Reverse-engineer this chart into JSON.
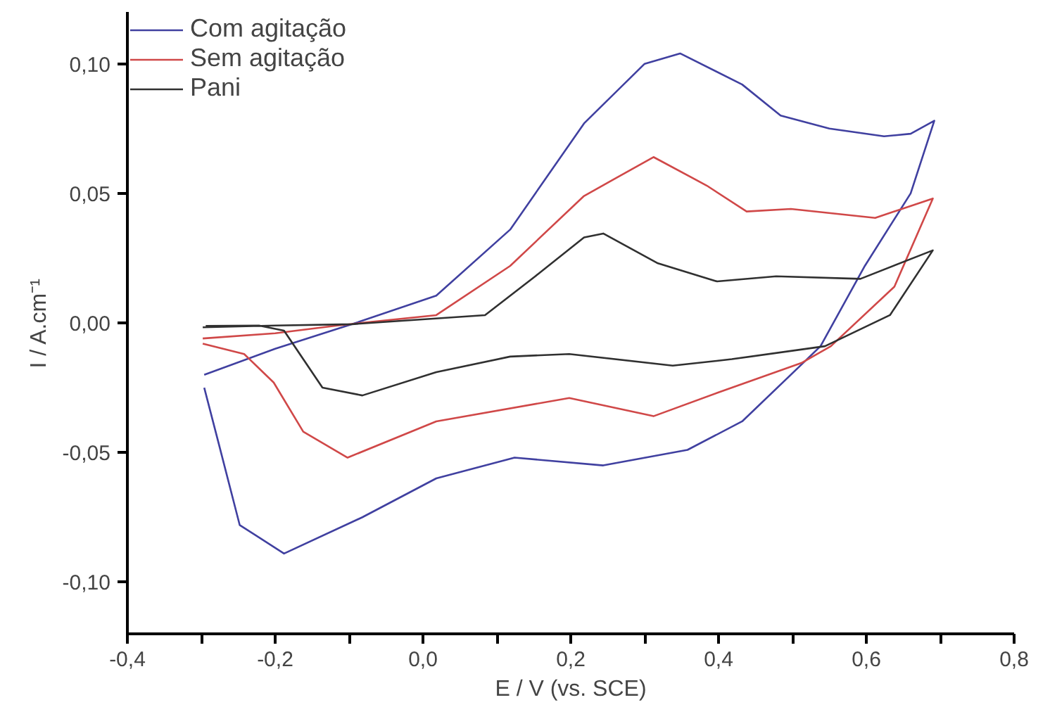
{
  "chart_data": {
    "type": "line",
    "xlabel": "E / V (vs. SCE)",
    "ylabel": "I / A.cm⁻¹",
    "xlim": [
      -0.4,
      0.8
    ],
    "ylim": [
      -0.12,
      0.12
    ],
    "xticks": [
      {
        "value": -0.4,
        "label": "-0,4"
      },
      {
        "value": -0.3,
        "label": null
      },
      {
        "value": -0.2,
        "label": "-0,2"
      },
      {
        "value": -0.1,
        "label": null
      },
      {
        "value": 0.0,
        "label": "0,0"
      },
      {
        "value": 0.1,
        "label": null
      },
      {
        "value": 0.2,
        "label": "0,2"
      },
      {
        "value": 0.3,
        "label": null
      },
      {
        "value": 0.4,
        "label": "0,4"
      },
      {
        "value": 0.5,
        "label": null
      },
      {
        "value": 0.6,
        "label": "0,6"
      },
      {
        "value": 0.7,
        "label": null
      },
      {
        "value": 0.8,
        "label": "0,8"
      }
    ],
    "yticks": [
      {
        "value": -0.1,
        "label": "-0,10"
      },
      {
        "value": -0.05,
        "label": "-0,05"
      },
      {
        "value": 0.0,
        "label": "0,00"
      },
      {
        "value": 0.05,
        "label": "0,05"
      },
      {
        "value": 0.1,
        "label": "0,10"
      }
    ],
    "grid": false,
    "legend": "top left",
    "marker": "none",
    "line_style": "solid",
    "series": [
      {
        "name": "Com agitação",
        "color": "#4040a0",
        "x": [
          -0.296,
          -0.2,
          -0.096,
          0.018,
          0.118,
          0.218,
          0.3,
          0.348,
          0.432,
          0.484,
          0.55,
          0.624,
          0.66,
          0.692,
          0.66,
          0.598,
          0.538,
          0.518,
          0.432,
          0.358,
          0.244,
          0.124,
          0.018,
          -0.082,
          -0.188,
          -0.248,
          -0.276,
          -0.296
        ],
        "values": [
          -0.02,
          -0.01,
          -0.0005,
          0.0105,
          0.036,
          0.077,
          0.1,
          0.104,
          0.092,
          0.08,
          0.075,
          0.072,
          0.073,
          0.078,
          0.05,
          0.022,
          -0.009,
          -0.0145,
          -0.038,
          -0.049,
          -0.055,
          -0.052,
          -0.06,
          -0.075,
          -0.089,
          -0.078,
          -0.047,
          -0.025
        ]
      },
      {
        "name": "Sem agitação",
        "color": "#d04848",
        "x": [
          -0.298,
          -0.2,
          -0.116,
          0.018,
          0.118,
          0.218,
          0.312,
          0.384,
          0.438,
          0.498,
          0.612,
          0.69,
          0.638,
          0.552,
          0.512,
          0.398,
          0.312,
          0.198,
          0.018,
          -0.102,
          -0.162,
          -0.202,
          -0.242,
          -0.298
        ],
        "values": [
          -0.006,
          -0.004,
          -0.001,
          0.003,
          0.022,
          0.049,
          0.064,
          0.053,
          0.043,
          0.044,
          0.0405,
          0.048,
          0.014,
          -0.009,
          -0.0155,
          -0.027,
          -0.036,
          -0.029,
          -0.038,
          -0.052,
          -0.042,
          -0.023,
          -0.012,
          -0.008
        ]
      },
      {
        "name": "Pani",
        "color": "#303030",
        "x": [
          -0.298,
          -0.2,
          -0.096,
          0.084,
          0.152,
          0.218,
          0.244,
          0.318,
          0.398,
          0.478,
          0.592,
          0.69,
          0.632,
          0.544,
          0.418,
          0.338,
          0.198,
          0.118,
          0.018,
          -0.082,
          -0.136,
          -0.162,
          -0.188,
          -0.222,
          -0.294
        ],
        "values": [
          -0.0017,
          -0.001,
          -0.0005,
          0.003,
          0.018,
          0.033,
          0.0345,
          0.023,
          0.016,
          0.018,
          0.017,
          0.028,
          0.003,
          -0.009,
          -0.014,
          -0.0165,
          -0.012,
          -0.013,
          -0.019,
          -0.028,
          -0.025,
          -0.014,
          -0.003,
          -0.001,
          -0.0012
        ]
      }
    ]
  }
}
